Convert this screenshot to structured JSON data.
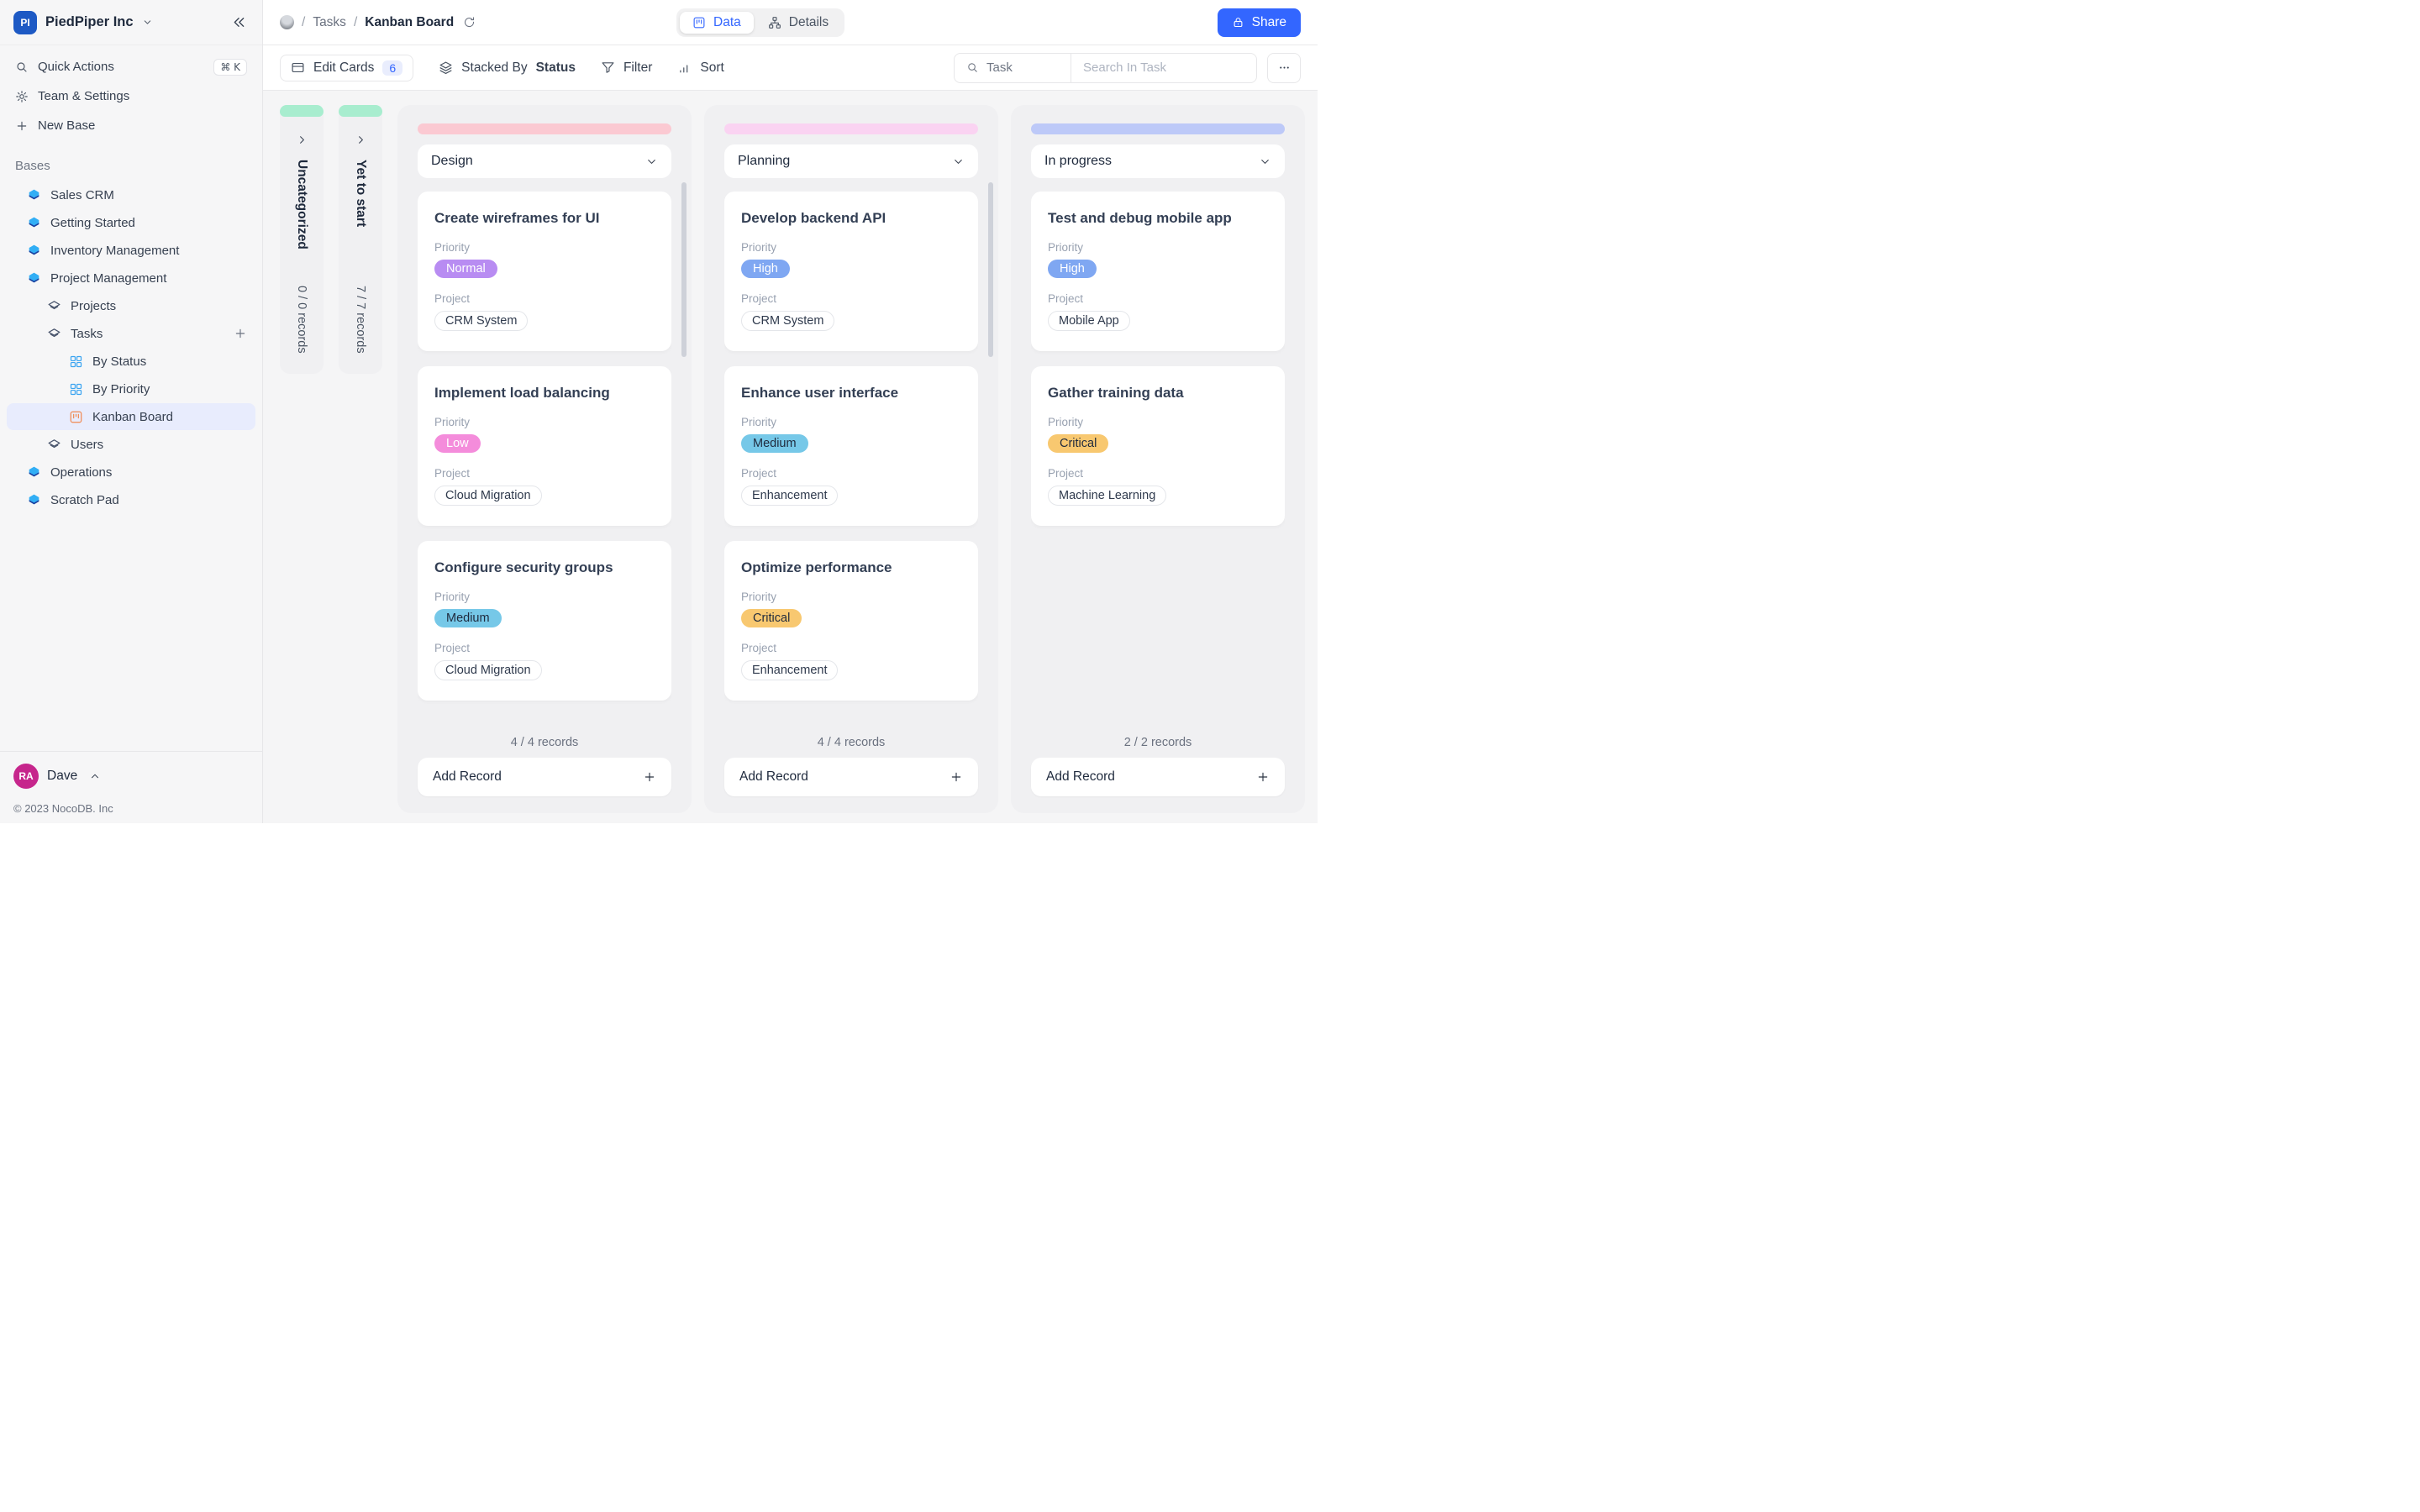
{
  "workspace": {
    "initials": "PI",
    "name": "PiedPiper Inc"
  },
  "sidebar": {
    "quick_actions": {
      "label": "Quick Actions",
      "shortcut": "⌘ K"
    },
    "team_settings_label": "Team & Settings",
    "new_base_label": "New Base",
    "bases_label": "Bases",
    "items": [
      {
        "label": "Sales CRM",
        "type": "base",
        "level": 0
      },
      {
        "label": "Getting Started",
        "type": "base",
        "level": 0
      },
      {
        "label": "Inventory Management",
        "type": "base",
        "level": 0
      },
      {
        "label": "Project Management",
        "type": "base",
        "level": 0
      },
      {
        "label": "Projects",
        "type": "table",
        "level": 1
      },
      {
        "label": "Tasks",
        "type": "table",
        "level": 1,
        "has_add": true
      },
      {
        "label": "By Status",
        "type": "grid-view",
        "level": 2
      },
      {
        "label": "By Priority",
        "type": "grid-view",
        "level": 2
      },
      {
        "label": "Kanban Board",
        "type": "kanban-view",
        "level": 2,
        "selected": true
      },
      {
        "label": "Users",
        "type": "table",
        "level": 1
      },
      {
        "label": "Operations",
        "type": "base",
        "level": 0
      },
      {
        "label": "Scratch Pad",
        "type": "base",
        "level": 0
      }
    ],
    "user": {
      "initials": "RA",
      "name": "Dave"
    },
    "copyright": "© 2023 NocoDB. Inc"
  },
  "topbar": {
    "breadcrumb": {
      "separator": "/",
      "table": "Tasks",
      "view": "Kanban Board"
    },
    "tabs": [
      {
        "label": "Data",
        "active": true
      },
      {
        "label": "Details",
        "active": false
      }
    ],
    "share_label": "Share",
    "accent_color": "#3366ff"
  },
  "toolbar": {
    "edit_cards_label": "Edit Cards",
    "edit_cards_count": "6",
    "stacked_by_label": "Stacked By",
    "stacked_by_value": "Status",
    "filter_label": "Filter",
    "sort_label": "Sort",
    "search_field_label": "Task",
    "search_placeholder": "Search In Task"
  },
  "board": {
    "field_labels": {
      "priority": "Priority",
      "project": "Project"
    },
    "add_record_label": "Add Record",
    "collapsed_stacks": [
      {
        "title": "Uncategorized",
        "records": "0 / 0 records",
        "cap_color": "#a8edcf"
      },
      {
        "title": "Yet to start",
        "records": "7 / 7 records",
        "cap_color": "#a8edcf"
      }
    ],
    "columns": [
      {
        "title": "Design",
        "bar_color": "#fbc9d2",
        "records": "4 / 4 records",
        "has_scrollbar": true,
        "cards": [
          {
            "title": "Create wireframes for UI",
            "priority": {
              "label": "Normal",
              "bg": "#b88cf2",
              "color": "#ffffff"
            },
            "project": "CRM System"
          },
          {
            "title": "Implement load balancing",
            "priority": {
              "label": "Low",
              "bg": "#f48cdb",
              "color": "#ffffff"
            },
            "project": "Cloud Migration"
          },
          {
            "title": "Configure security groups",
            "priority": {
              "label": "Medium",
              "bg": "#76c8e8",
              "color": "#1f2a3d"
            },
            "project": "Cloud Migration"
          }
        ]
      },
      {
        "title": "Planning",
        "bar_color": "#fad3f2",
        "records": "4 / 4 records",
        "has_scrollbar": true,
        "cards": [
          {
            "title": "Develop backend API",
            "priority": {
              "label": "High",
              "bg": "#7fa7f2",
              "color": "#ffffff"
            },
            "project": "CRM System"
          },
          {
            "title": "Enhance user interface",
            "priority": {
              "label": "Medium",
              "bg": "#76c8e8",
              "color": "#1f2a3d"
            },
            "project": "Enhancement"
          },
          {
            "title": "Optimize performance",
            "priority": {
              "label": "Critical",
              "bg": "#f8c870",
              "color": "#1f2a3d"
            },
            "project": "Enhancement"
          }
        ]
      },
      {
        "title": "In progress",
        "bar_color": "#bdc9f8",
        "records": "2 / 2 records",
        "has_scrollbar": false,
        "cards": [
          {
            "title": "Test and debug mobile app",
            "priority": {
              "label": "High",
              "bg": "#7fa7f2",
              "color": "#ffffff"
            },
            "project": "Mobile App"
          },
          {
            "title": "Gather training data",
            "priority": {
              "label": "Critical",
              "bg": "#f8c870",
              "color": "#1f2a3d"
            },
            "project": "Machine Learning"
          }
        ]
      }
    ]
  }
}
